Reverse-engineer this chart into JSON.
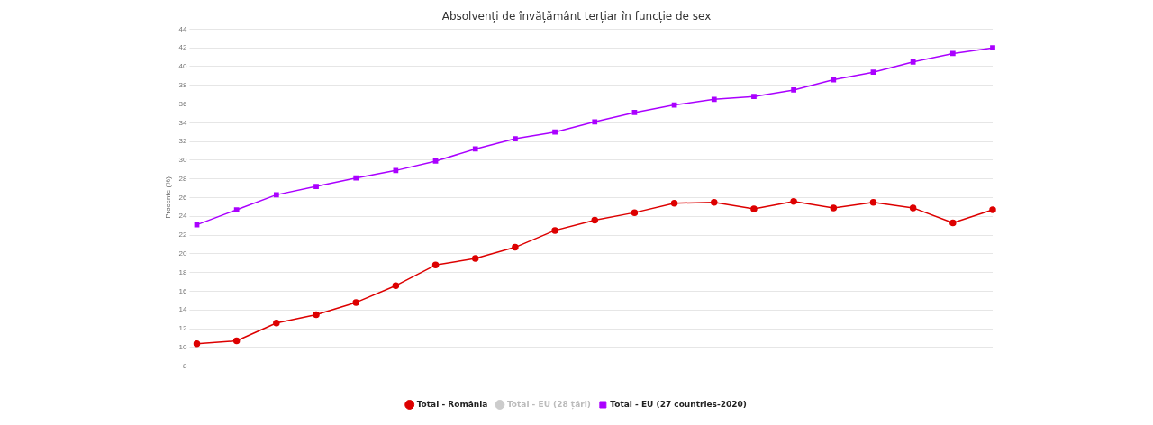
{
  "chart_data": {
    "type": "line",
    "title": "Absolvenți de învățământ terțiar în funcție de sex",
    "ylabel": "Procente (%)",
    "categories": [
      null,
      null,
      null,
      null,
      null,
      null,
      null,
      null,
      null,
      null,
      null,
      null,
      null,
      null,
      null,
      null,
      null,
      null,
      null,
      null,
      null
    ],
    "series": [
      {
        "name": "Total - România",
        "color": "#dd0000",
        "marker": "circle",
        "values": [
          10.4,
          10.7,
          12.6,
          13.5,
          14.8,
          16.6,
          18.8,
          19.5,
          20.7,
          22.5,
          23.6,
          24.4,
          25.4,
          25.5,
          24.8,
          25.6,
          24.9,
          25.5,
          24.9,
          23.3,
          24.7
        ]
      },
      {
        "name": "Total - EU (28 țări)",
        "color": "#cccccc",
        "marker": "circle",
        "values": [
          null,
          null,
          null,
          null,
          null,
          null,
          null,
          null,
          null,
          null,
          null,
          null,
          null,
          null,
          null,
          null,
          null,
          null,
          null,
          null,
          null
        ]
      },
      {
        "name": "Total - EU (27 countries-2020)",
        "color": "#aa00ff",
        "marker": "square",
        "values": [
          23.1,
          24.7,
          26.3,
          27.2,
          28.1,
          28.9,
          29.9,
          31.2,
          32.3,
          33.0,
          34.1,
          35.1,
          35.9,
          36.5,
          36.8,
          37.5,
          38.6,
          39.4,
          40.5,
          41.4,
          42.0
        ]
      }
    ],
    "ylim": [
      8,
      44
    ],
    "yticks": [
      8,
      10,
      12,
      14,
      16,
      18,
      20,
      22,
      24,
      26,
      28,
      30,
      32,
      34,
      36,
      38,
      40,
      42,
      44
    ],
    "grid": "y",
    "legend": "bottom",
    "line_style": "solid"
  }
}
